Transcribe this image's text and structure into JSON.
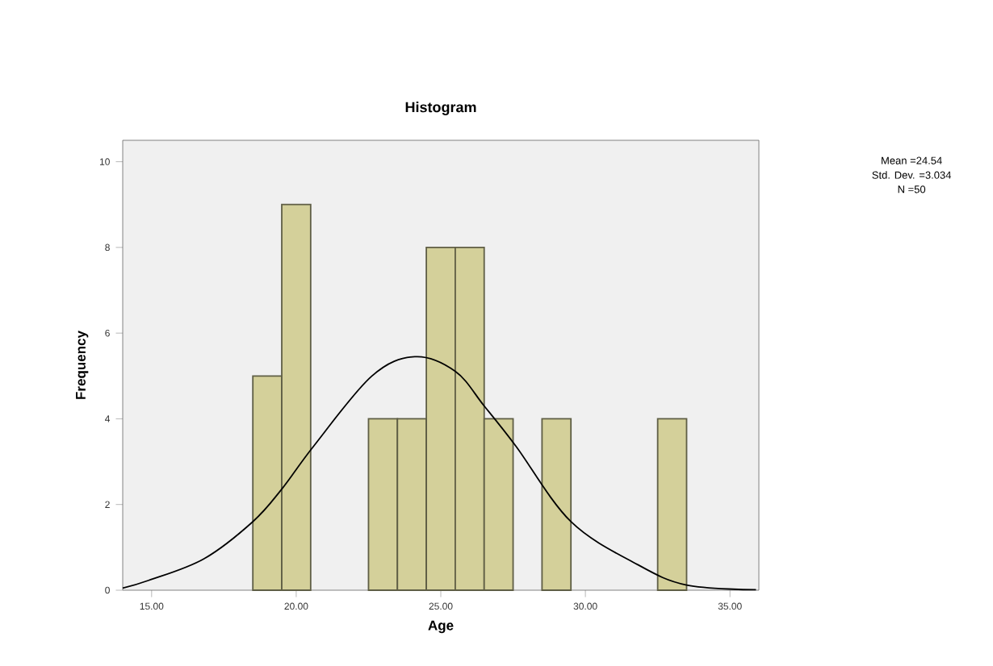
{
  "chart_data": {
    "type": "histogram",
    "title": "Histogram",
    "xlabel": "Age",
    "ylabel": "Frequency",
    "annotations": [
      "Mean =24.54",
      "Std. Dev. =3.034",
      "N =50"
    ],
    "xlim": [
      14,
      36
    ],
    "ylim": [
      0,
      10.5
    ],
    "xticks": [
      {
        "value": 15,
        "label": "15.00"
      },
      {
        "value": 20,
        "label": "20.00"
      },
      {
        "value": 25,
        "label": "25.00"
      },
      {
        "value": 30,
        "label": "30.00"
      },
      {
        "value": 35,
        "label": "35.00"
      }
    ],
    "yticks": [
      0,
      2,
      4,
      6,
      8,
      10
    ],
    "grid": false,
    "series": [
      {
        "color": "#d4d09a",
        "bins": [
          18.5,
          19.5,
          20.5,
          21.5,
          22.5,
          23.5,
          24.5,
          25.5,
          26.5,
          27.5,
          28.5,
          29.5,
          30.5,
          31.5,
          32.5,
          33.5
        ],
        "values": [
          5,
          9,
          0,
          0,
          4,
          4,
          8,
          8,
          4,
          0,
          4,
          0,
          0,
          0,
          4
        ]
      },
      {
        "type": "line",
        "color": "#000000",
        "x": [
          14.0,
          14.9,
          16.8,
          18.5,
          19.5,
          20.6,
          22.6,
          24.1,
          25.5,
          26.5,
          27.6,
          29.5,
          31.8,
          33.5,
          35.9
        ],
        "values": [
          0.05,
          0.23,
          0.73,
          1.6,
          2.36,
          3.36,
          4.99,
          5.45,
          5.11,
          4.3,
          3.36,
          1.6,
          0.6,
          0.12,
          0.01
        ]
      }
    ]
  }
}
